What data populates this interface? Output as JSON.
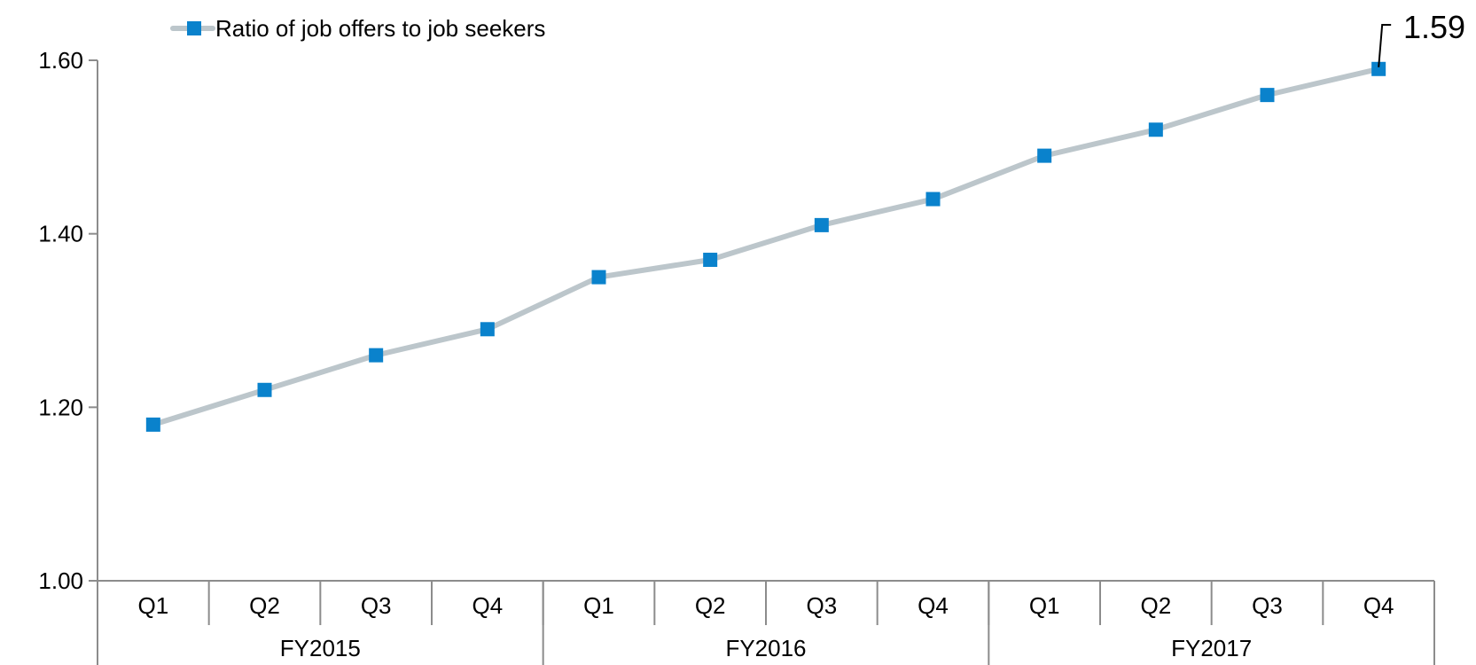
{
  "chart_data": {
    "type": "line",
    "title": "",
    "xlabel": "",
    "ylabel": "",
    "ylim": [
      1.0,
      1.6
    ],
    "yticks": [
      "1.00",
      "1.20",
      "1.40",
      "1.60"
    ],
    "grid": false,
    "legend_position": "top-left",
    "categories": [
      "Q1",
      "Q2",
      "Q3",
      "Q4",
      "Q1",
      "Q2",
      "Q3",
      "Q4",
      "Q1",
      "Q2",
      "Q3",
      "Q4"
    ],
    "groups": [
      {
        "label": "FY2015",
        "count": 4
      },
      {
        "label": "FY2016",
        "count": 4
      },
      {
        "label": "FY2017",
        "count": 4
      }
    ],
    "series": [
      {
        "name": "Ratio of job offers to job seekers",
        "values": [
          1.18,
          1.22,
          1.26,
          1.29,
          1.35,
          1.37,
          1.41,
          1.44,
          1.49,
          1.52,
          1.56,
          1.59
        ],
        "line_color": "#bcc6cb",
        "marker_color": "#0a82cc",
        "marker": "square"
      }
    ],
    "annotations": [
      {
        "category_index": 11,
        "text": "1.59"
      }
    ]
  }
}
